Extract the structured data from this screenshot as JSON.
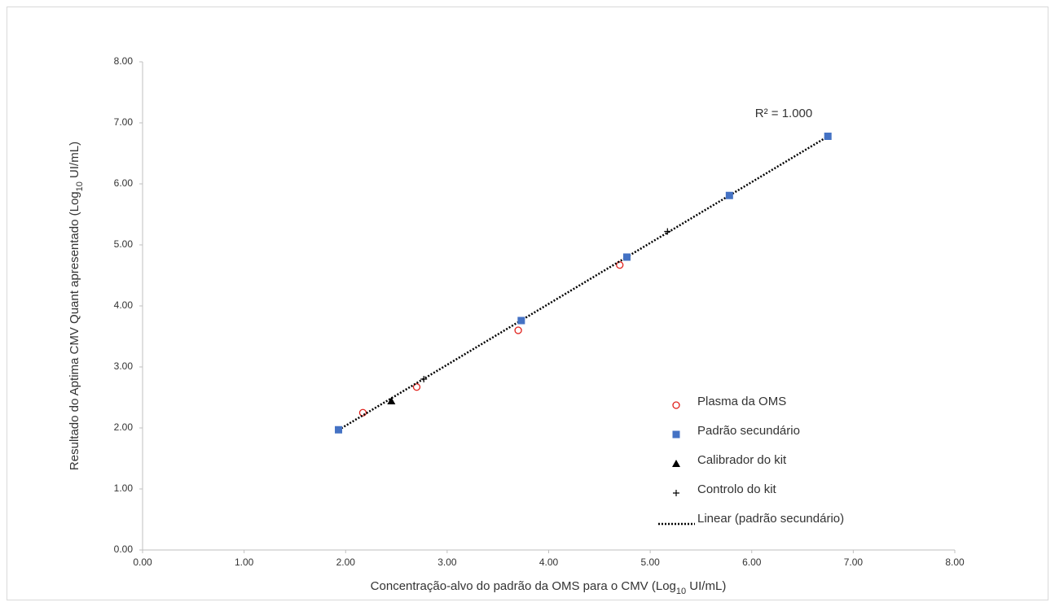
{
  "chart_data": {
    "type": "scatter",
    "x_label": [
      "Concentração-alvo do padrão da OMS para o CMV (Log",
      "10",
      " UI/mL)"
    ],
    "y_label": [
      "Resultado do Aptima CMV Quant apresentado (Log",
      "10",
      " UI/mL)"
    ],
    "annotation": "R² = 1.000",
    "xlim": [
      0,
      8
    ],
    "ylim": [
      0,
      8
    ],
    "xticks": [
      {
        "value": 0,
        "label": "0.00"
      },
      {
        "value": 1,
        "label": "1.00"
      },
      {
        "value": 2,
        "label": "2.00"
      },
      {
        "value": 3,
        "label": "3.00"
      },
      {
        "value": 4,
        "label": "4.00"
      },
      {
        "value": 5,
        "label": "5.00"
      },
      {
        "value": 6,
        "label": "6.00"
      },
      {
        "value": 7,
        "label": "7.00"
      },
      {
        "value": 8,
        "label": "8.00"
      }
    ],
    "yticks": [
      {
        "value": 0,
        "label": "0.00"
      },
      {
        "value": 1,
        "label": "1.00"
      },
      {
        "value": 2,
        "label": "2.00"
      },
      {
        "value": 3,
        "label": "3.00"
      },
      {
        "value": 4,
        "label": "4.00"
      },
      {
        "value": 5,
        "label": "5.00"
      },
      {
        "value": 6,
        "label": "6.00"
      },
      {
        "value": 7,
        "label": "7.00"
      },
      {
        "value": 8,
        "label": "8.00"
      }
    ],
    "series": [
      {
        "name": "Plasma da OMS",
        "color": "#e0201b",
        "marker": "circle",
        "x": [
          2.17,
          2.7,
          3.7,
          4.7
        ],
        "values": [
          2.25,
          2.67,
          3.6,
          4.67
        ]
      },
      {
        "name": "Padrão secundário",
        "color": "#4472c4",
        "marker": "square",
        "x": [
          1.93,
          3.73,
          4.77,
          5.78,
          6.75
        ],
        "values": [
          1.97,
          3.76,
          4.8,
          5.81,
          6.78
        ],
        "trendline": {
          "name": "Linear (padrão secundário)",
          "color": "#000000"
        }
      },
      {
        "name": "Calibrador do kit",
        "color": "#000000",
        "marker": "triangle",
        "x": [
          2.45
        ],
        "values": [
          2.44
        ]
      },
      {
        "name": "Controlo do kit",
        "color": "#000000",
        "marker": "plus",
        "x": [
          2.77,
          5.17
        ],
        "values": [
          2.8,
          5.22
        ]
      }
    ]
  }
}
